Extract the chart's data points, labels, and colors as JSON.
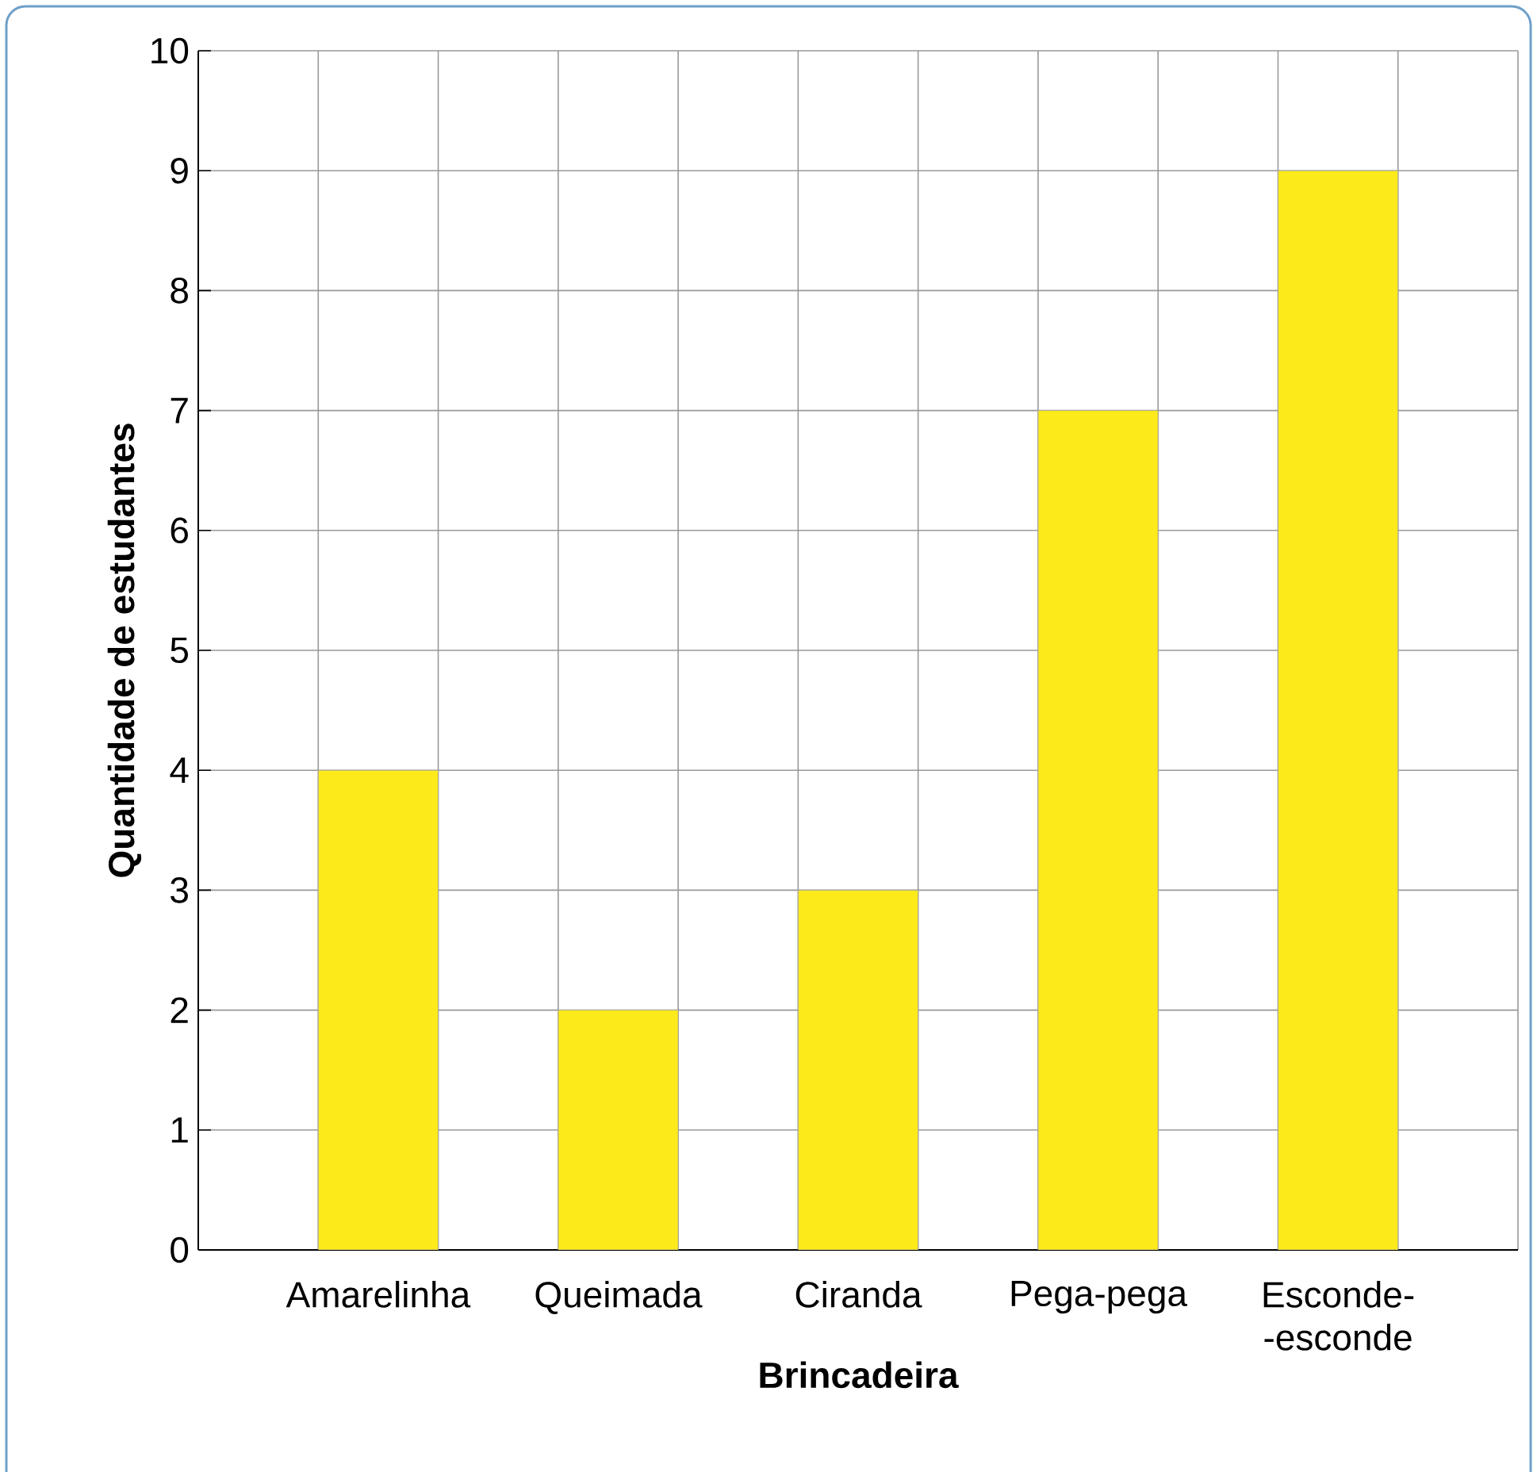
{
  "chart_data": {
    "type": "bar",
    "xlabel": "Brincadeira",
    "ylabel": "Quantidade de estudantes",
    "categories": [
      "Amarelinha",
      "Queimada",
      "Ciranda",
      "Pega-pega",
      "Esconde- -esconde"
    ],
    "values": [
      4,
      2,
      3,
      7,
      9
    ],
    "color": "#fdea1b",
    "ylim": [
      0,
      10
    ],
    "yticks": [
      0,
      1,
      2,
      3,
      4,
      5,
      6,
      7,
      8,
      9,
      10
    ],
    "grid": true
  }
}
